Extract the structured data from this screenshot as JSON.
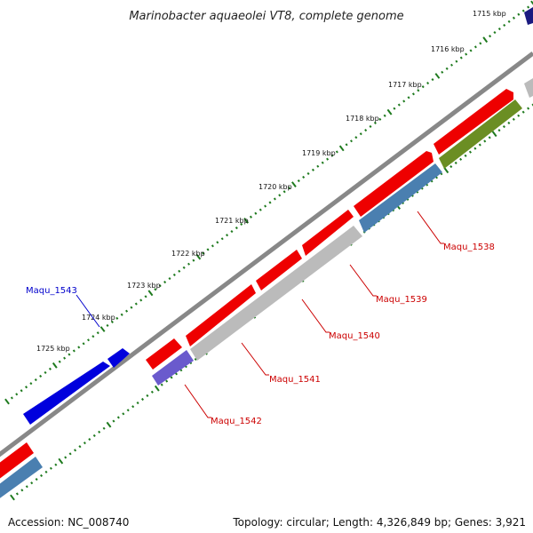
{
  "title": "Marinobacter aquaeolei VT8, complete genome",
  "kbp_ticks": [
    "1715 kbp",
    "1716 kbp",
    "1717 kbp",
    "1718 kbp",
    "1719 kbp",
    "1720 kbp",
    "1721 kbp",
    "1722 kbp",
    "1723 kbp",
    "1724 kbp",
    "1725 kbp"
  ],
  "genes": [
    {
      "name": "Maqu_1538",
      "color": "#cc0000"
    },
    {
      "name": "Maqu_1539",
      "color": "#cc0000"
    },
    {
      "name": "Maqu_1540",
      "color": "#cc0000"
    },
    {
      "name": "Maqu_1541",
      "color": "#cc0000"
    },
    {
      "name": "Maqu_1542",
      "color": "#cc0000"
    },
    {
      "name": "Maqu_1543",
      "color": "#0000cc"
    }
  ],
  "colors": {
    "forward_strand": "#ee0000",
    "reverse_strand_blue": "#0000dd",
    "steel_blue": "#4a7fb0",
    "gray": "#bbbbbb",
    "olive": "#6b8e23",
    "purple": "#6a5acd",
    "tick_green": "#1e7a1e",
    "backbone": "#888888"
  },
  "footer": {
    "accession": "Accession: NC_008740",
    "summary": "Topology: circular; Length: 4,326,849 bp; Genes: 3,921"
  }
}
